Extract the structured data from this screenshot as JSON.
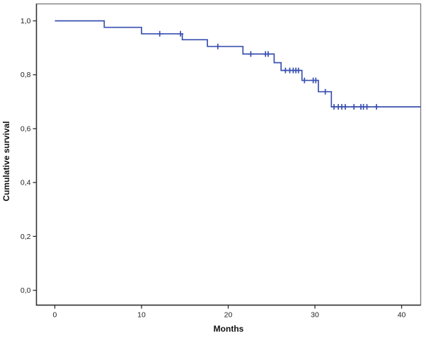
{
  "window": {
    "title": "Kaplan-Meier cumulative survival plot",
    "background": "#ffffff"
  },
  "colors": {
    "curve": "#3a50b0",
    "frame": "#7f7f7f",
    "axis": "#2e2e2e",
    "text": "#1f1f1f"
  },
  "chart_data": {
    "type": "line",
    "subtype": "kaplan-meier-step",
    "title": "",
    "xlabel": "Months",
    "ylabel": "Cumulative survival",
    "grid": false,
    "legend": null,
    "xlim": [
      -2.12,
      42.2
    ],
    "ylim": [
      -0.055,
      1.063
    ],
    "x_ticks": [
      {
        "v": 0,
        "label": "0"
      },
      {
        "v": 10,
        "label": "10"
      },
      {
        "v": 20,
        "label": "20"
      },
      {
        "v": 30,
        "label": "30"
      },
      {
        "v": 40,
        "label": "40"
      }
    ],
    "y_ticks": [
      {
        "v": 0.0,
        "label": "0,0"
      },
      {
        "v": 0.2,
        "label": "0,2"
      },
      {
        "v": 0.4,
        "label": "0,4"
      },
      {
        "v": 0.6,
        "label": "0,6"
      },
      {
        "v": 0.8,
        "label": "0,8"
      },
      {
        "v": 1.0,
        "label": "1,0"
      }
    ],
    "series": [
      {
        "name": "Cumulative survival",
        "color": "#3a50b0",
        "end_time": 42.2,
        "steps": [
          [
            0.0,
            1.0
          ],
          [
            5.7,
            0.976
          ],
          [
            10.0,
            0.952
          ],
          [
            14.7,
            0.93
          ],
          [
            17.6,
            0.905
          ],
          [
            21.7,
            0.877
          ],
          [
            25.3,
            0.845
          ],
          [
            26.1,
            0.816
          ],
          [
            28.5,
            0.779
          ],
          [
            30.4,
            0.737
          ],
          [
            31.9,
            0.681
          ]
        ],
        "censored": [
          [
            12.1,
            0.952
          ],
          [
            14.5,
            0.952
          ],
          [
            18.8,
            0.905
          ],
          [
            22.6,
            0.877
          ],
          [
            24.3,
            0.877
          ],
          [
            24.6,
            0.877
          ],
          [
            26.6,
            0.816
          ],
          [
            27.1,
            0.816
          ],
          [
            27.5,
            0.816
          ],
          [
            27.8,
            0.816
          ],
          [
            28.1,
            0.816
          ],
          [
            28.8,
            0.779
          ],
          [
            29.8,
            0.779
          ],
          [
            30.1,
            0.779
          ],
          [
            31.2,
            0.737
          ],
          [
            32.2,
            0.681
          ],
          [
            32.7,
            0.681
          ],
          [
            33.1,
            0.681
          ],
          [
            33.5,
            0.681
          ],
          [
            34.5,
            0.681
          ],
          [
            35.3,
            0.681
          ],
          [
            35.6,
            0.681
          ],
          [
            36.0,
            0.681
          ],
          [
            37.1,
            0.681
          ]
        ]
      }
    ]
  }
}
